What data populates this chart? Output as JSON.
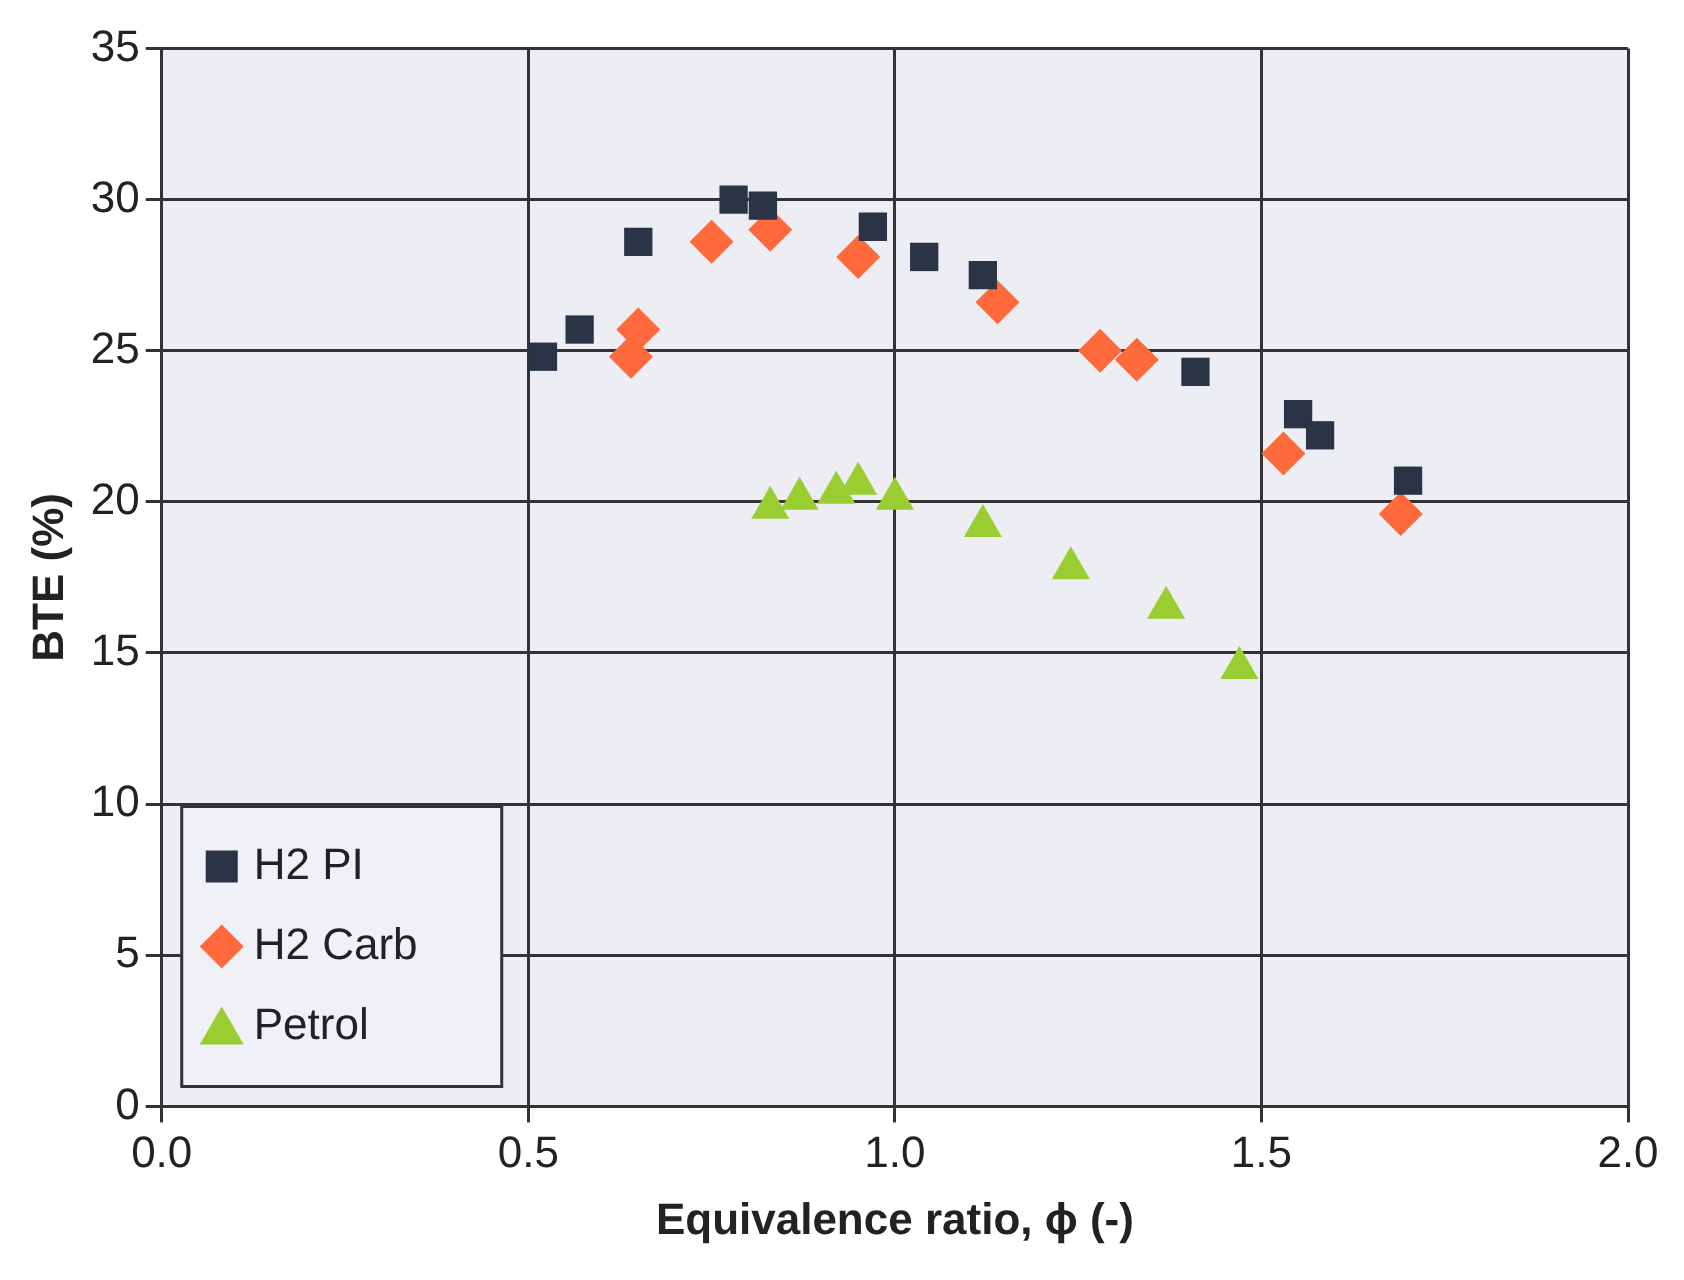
{
  "chart_data": {
    "type": "scatter",
    "xlabel": "Equivalence ratio, ϕ (-)",
    "ylabel": "BTE (%)",
    "xlim": [
      0,
      2
    ],
    "xticks": [
      {
        "value": 0,
        "label": "0.0"
      },
      {
        "value": 0.5,
        "label": "0.5"
      },
      {
        "value": 1,
        "label": "1.0"
      },
      {
        "value": 1.5,
        "label": "1.5"
      },
      {
        "value": 2,
        "label": "2.0"
      }
    ],
    "ylim": [
      0,
      35
    ],
    "yticks": [
      0,
      5,
      10,
      15,
      20,
      25,
      30,
      35
    ],
    "grid": true,
    "legend": "bottom left",
    "series": [
      {
        "name": "H2 PI",
        "color": "#2b3346",
        "marker": "square",
        "x": [
          0.52,
          0.57,
          0.65,
          0.78,
          0.82,
          0.97,
          1.04,
          1.12,
          1.41,
          1.55,
          1.58,
          1.7
        ],
        "values": [
          24.8,
          25.7,
          28.6,
          30.0,
          29.8,
          29.1,
          28.1,
          27.5,
          24.3,
          22.9,
          22.2,
          20.7
        ]
      },
      {
        "name": "H2 Carb",
        "color": "#ff6a3d",
        "marker": "diamond",
        "x": [
          0.64,
          0.65,
          0.75,
          0.83,
          0.95,
          1.14,
          1.28,
          1.33,
          1.53,
          1.69
        ],
        "values": [
          24.8,
          25.7,
          28.6,
          29.0,
          28.1,
          26.6,
          25.0,
          24.7,
          21.6,
          19.6
        ]
      },
      {
        "name": "Petrol",
        "color": "#9acd32",
        "marker": "triangle",
        "x": [
          0.83,
          0.87,
          0.92,
          0.95,
          1.0,
          1.12,
          1.24,
          1.37,
          1.47
        ],
        "values": [
          19.8,
          20.1,
          20.3,
          20.6,
          20.1,
          19.2,
          17.8,
          16.5,
          14.5
        ]
      }
    ]
  }
}
